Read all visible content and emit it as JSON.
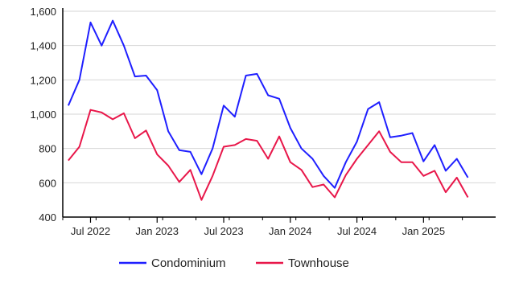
{
  "chart_data": {
    "type": "line",
    "x": [
      "May 2022",
      "Jun 2022",
      "Jul 2022",
      "Aug 2022",
      "Sep 2022",
      "Oct 2022",
      "Nov 2022",
      "Dec 2022",
      "Jan 2023",
      "Feb 2023",
      "Mar 2023",
      "Apr 2023",
      "May 2023",
      "Jun 2023",
      "Jul 2023",
      "Aug 2023",
      "Sep 2023",
      "Oct 2023",
      "Nov 2023",
      "Dec 2023",
      "Jan 2024",
      "Feb 2024",
      "Mar 2024",
      "Apr 2024",
      "May 2024",
      "Jun 2024",
      "Jul 2024",
      "Aug 2024",
      "Sep 2024",
      "Oct 2024",
      "Nov 2024",
      "Dec 2024",
      "Jan 2025",
      "Feb 2025",
      "Mar 2025",
      "Apr 2025",
      "May 2025",
      "Jun 2025",
      "Jul 2025"
    ],
    "series": [
      {
        "name": "Condominium",
        "color": "#1f1fff",
        "values": [
          1050,
          1200,
          1535,
          1400,
          1545,
          1400,
          1220,
          1225,
          1140,
          900,
          790,
          780,
          650,
          800,
          1050,
          985,
          1225,
          1235,
          1110,
          1090,
          920,
          800,
          740,
          640,
          570,
          720,
          840,
          1030,
          1070,
          865,
          875,
          890,
          725,
          820,
          670,
          740,
          630,
          null,
          null
        ]
      },
      {
        "name": "Townhouse",
        "color": "#e8174a",
        "values": [
          730,
          810,
          1025,
          1010,
          970,
          1005,
          860,
          905,
          765,
          700,
          605,
          675,
          500,
          640,
          810,
          820,
          855,
          845,
          740,
          870,
          720,
          675,
          575,
          590,
          515,
          645,
          740,
          820,
          900,
          780,
          720,
          720,
          640,
          670,
          545,
          630,
          515,
          null,
          null
        ]
      }
    ],
    "x_tick_labels": [
      "Jul 2022",
      "Jan 2023",
      "Jul 2023",
      "Jan 2024",
      "Jul 2024",
      "Jan 2025"
    ],
    "x_tick_indices": [
      2,
      8,
      14,
      20,
      26,
      32
    ],
    "y_tick_labels": [
      "400",
      "600",
      "800",
      "1,000",
      "1,200",
      "1,400",
      "1,600"
    ],
    "y_ticks": [
      400,
      600,
      800,
      1000,
      1200,
      1400,
      1600
    ],
    "ylim": [
      400,
      1600
    ],
    "grid": "horizontal",
    "legend_placement": "bottom",
    "title": "",
    "xlabel": "",
    "ylabel": ""
  },
  "legend": {
    "items": [
      {
        "label": "Condominium",
        "color": "#1f1fff"
      },
      {
        "label": "Townhouse",
        "color": "#e8174a"
      }
    ]
  }
}
